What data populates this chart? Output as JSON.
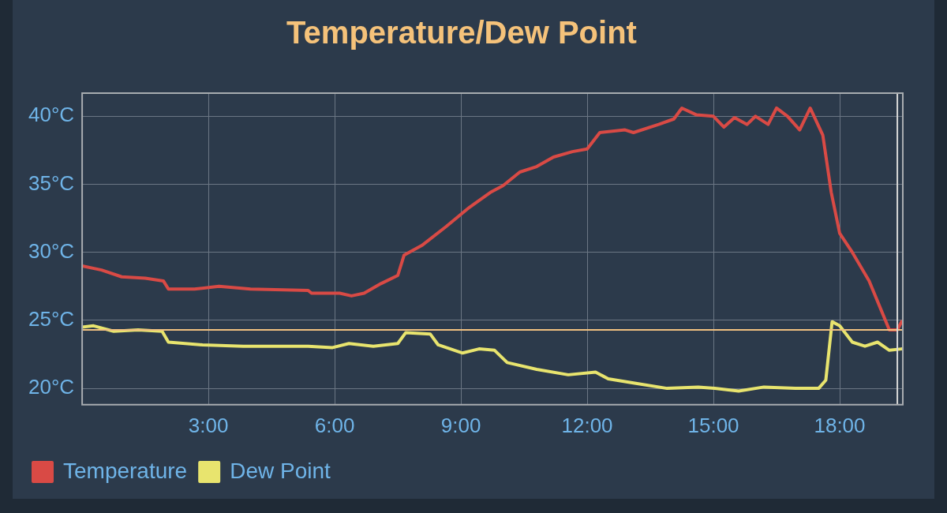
{
  "chart_data": {
    "type": "line",
    "title": "Temperature/Dew Point",
    "xlim": [
      0,
      19.5
    ],
    "xticks": [
      {
        "value": 3,
        "label": "3:00"
      },
      {
        "value": 6,
        "label": "6:00"
      },
      {
        "value": 9,
        "label": "9:00"
      },
      {
        "value": 12,
        "label": "12:00"
      },
      {
        "value": 15,
        "label": "15:00"
      },
      {
        "value": 18,
        "label": "18:00"
      }
    ],
    "ylim": [
      18.8,
      41.7
    ],
    "yticks": [
      {
        "value": 20,
        "label": "20°C"
      },
      {
        "value": 25,
        "label": "25°C"
      },
      {
        "value": 30,
        "label": "30°C"
      },
      {
        "value": 35,
        "label": "35°C"
      },
      {
        "value": 40,
        "label": "40°C"
      }
    ],
    "grid": true,
    "legend": "bottom left",
    "marker": "none",
    "line_style": "solid",
    "ref_lines": [
      {
        "axis": "y",
        "value": 24.3,
        "color": "#f0c080"
      },
      {
        "axis": "x",
        "value": 19.37,
        "color": "#d8d8d8"
      }
    ],
    "series": [
      {
        "name": "Temperature",
        "color": "#d94a45",
        "x": [
          0,
          0.46,
          0.94,
          1.5,
          1.93,
          2.05,
          2.67,
          3.25,
          4.0,
          5.37,
          5.45,
          6.12,
          6.4,
          6.7,
          7.1,
          7.5,
          7.65,
          8.07,
          8.65,
          9.2,
          9.7,
          10.0,
          10.4,
          10.8,
          11.2,
          11.65,
          12.0,
          12.3,
          12.9,
          13.1,
          13.7,
          14.06,
          14.25,
          14.6,
          15.0,
          15.25,
          15.5,
          15.8,
          16.0,
          16.3,
          16.5,
          16.76,
          17.05,
          17.3,
          17.6,
          17.8,
          18.0,
          18.3,
          18.7,
          18.98,
          19.18,
          19.37,
          19.47
        ],
        "values": [
          29.0,
          28.7,
          28.2,
          28.1,
          27.9,
          27.3,
          27.3,
          27.5,
          27.3,
          27.2,
          27.0,
          27.0,
          26.8,
          27.0,
          27.7,
          28.3,
          29.8,
          30.5,
          31.9,
          33.3,
          34.4,
          34.9,
          35.9,
          36.3,
          37.0,
          37.4,
          37.6,
          38.8,
          39.0,
          38.8,
          39.4,
          39.8,
          40.6,
          40.1,
          40.0,
          39.2,
          39.9,
          39.4,
          40.0,
          39.4,
          40.6,
          40.0,
          39.0,
          40.6,
          38.6,
          34.4,
          31.4,
          30.0,
          27.9,
          25.8,
          24.3,
          24.3,
          24.9
        ]
      },
      {
        "name": "Dew Point",
        "color": "#e8e46e",
        "x": [
          0,
          0.27,
          0.75,
          1.33,
          1.9,
          2.05,
          2.86,
          3.83,
          5.37,
          5.95,
          6.34,
          6.92,
          7.5,
          7.69,
          8.27,
          8.46,
          9.04,
          9.43,
          9.8,
          10.1,
          10.8,
          11.55,
          12.2,
          12.5,
          13.1,
          13.9,
          14.64,
          15.03,
          15.6,
          16.2,
          16.95,
          17.5,
          17.67,
          17.82,
          18.0,
          18.3,
          18.6,
          18.9,
          19.18,
          19.47
        ],
        "values": [
          24.5,
          24.6,
          24.2,
          24.3,
          24.2,
          23.4,
          23.2,
          23.1,
          23.1,
          23.0,
          23.3,
          23.1,
          23.3,
          24.1,
          24.0,
          23.2,
          22.6,
          22.9,
          22.8,
          21.9,
          21.4,
          21.0,
          21.2,
          20.7,
          20.4,
          20.0,
          20.1,
          20.0,
          19.8,
          20.1,
          20.0,
          20.0,
          20.6,
          24.9,
          24.6,
          23.4,
          23.1,
          23.4,
          22.8,
          22.9
        ]
      }
    ]
  }
}
